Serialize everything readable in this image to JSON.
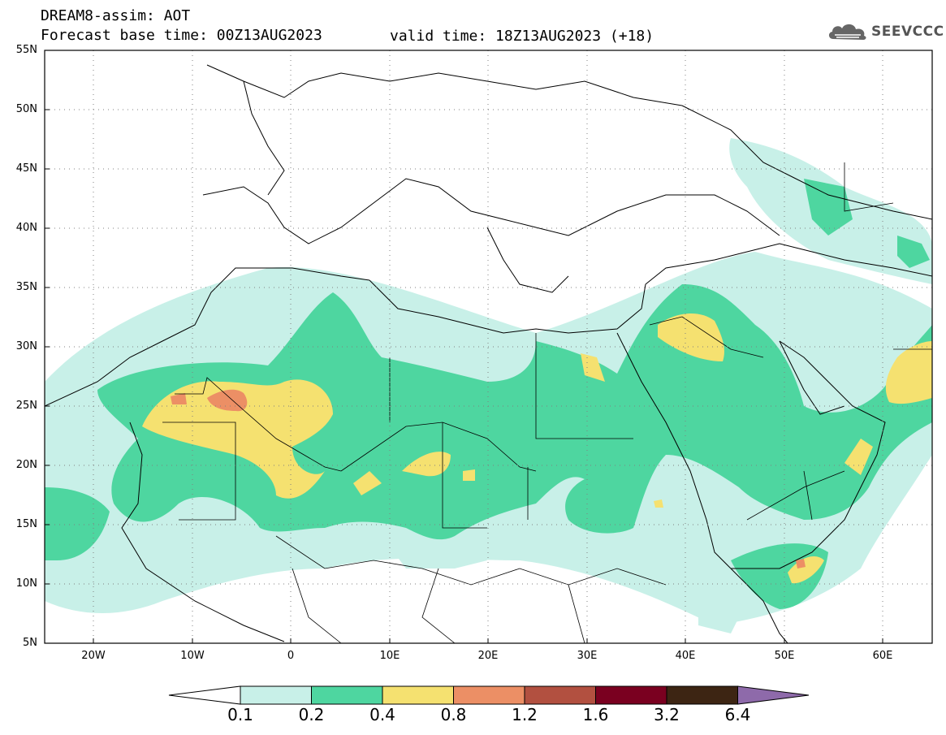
{
  "header": {
    "title": "DREAM8-assim: AOT",
    "base_time": "Forecast base time: 00Z13AUG2023",
    "valid_time": "valid time: 18Z13AUG2023 (+18)",
    "logo_text": "SEEVCCC"
  },
  "axes": {
    "lat_ticks": [
      "55N",
      "50N",
      "45N",
      "40N",
      "35N",
      "30N",
      "25N",
      "20N",
      "15N",
      "10N",
      "5N"
    ],
    "lon_ticks": [
      "20W",
      "10W",
      "0",
      "10E",
      "20E",
      "30E",
      "40E",
      "50E",
      "60E"
    ]
  },
  "colorbar": {
    "labels": [
      "0.1",
      "0.2",
      "0.4",
      "0.8",
      "1.2",
      "1.6",
      "3.2",
      "6.4"
    ],
    "colors": [
      "#ffffff",
      "#c8f0e8",
      "#4ed6a0",
      "#f5e170",
      "#ec8f65",
      "#b25040",
      "#7a0020",
      "#3d2513",
      "#8e6aaa"
    ]
  },
  "legend_colors": {
    "lightcyan": "#c8f0e8",
    "green": "#4ed6a0",
    "yellow": "#f5e170",
    "salmon": "#ec8f65"
  }
}
